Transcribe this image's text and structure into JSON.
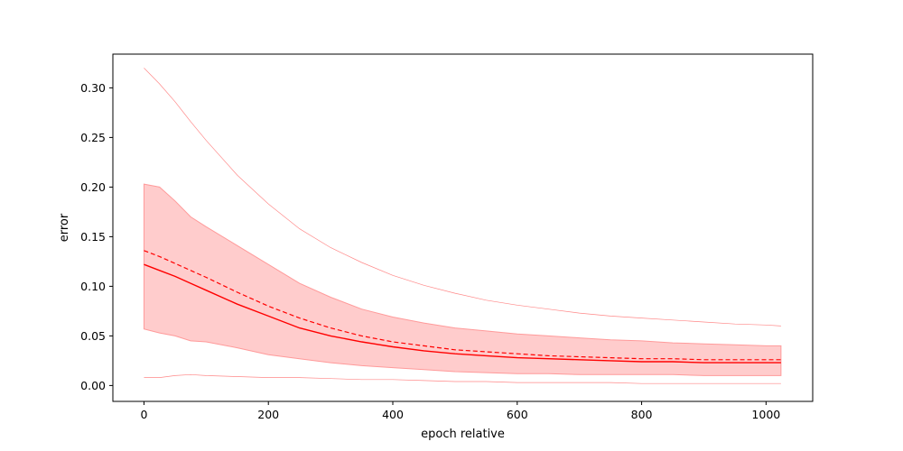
{
  "chart_data": {
    "type": "line",
    "title": "",
    "xlabel": "epoch relative",
    "ylabel": "error",
    "xlim": [
      -50,
      1075
    ],
    "ylim": [
      -0.016,
      0.334
    ],
    "xticks": [
      0,
      200,
      400,
      600,
      800,
      1000
    ],
    "xtick_labels": [
      "0",
      "200",
      "400",
      "600",
      "800",
      "1000"
    ],
    "yticks": [
      0.0,
      0.05,
      0.1,
      0.15,
      0.2,
      0.25,
      0.3
    ],
    "ytick_labels": [
      "0.00",
      "0.05",
      "0.10",
      "0.15",
      "0.20",
      "0.25",
      "0.30"
    ],
    "grid": false,
    "legend": "none",
    "colors": {
      "line": "#ff0000",
      "band": "#ffcccc",
      "band_edge": "#ff9a9a",
      "thin": "#ff8888"
    },
    "x": [
      0,
      25,
      50,
      75,
      100,
      150,
      200,
      250,
      300,
      350,
      400,
      450,
      500,
      550,
      600,
      650,
      700,
      750,
      800,
      850,
      900,
      950,
      1000,
      1024
    ],
    "series": [
      {
        "style": "solid",
        "values": [
          0.122,
          0.116,
          0.11,
          0.103,
          0.096,
          0.082,
          0.07,
          0.058,
          0.05,
          0.044,
          0.039,
          0.035,
          0.032,
          0.03,
          0.028,
          0.027,
          0.026,
          0.025,
          0.024,
          0.024,
          0.023,
          0.023,
          0.023,
          0.023
        ]
      },
      {
        "style": "dashed",
        "values": [
          0.136,
          0.13,
          0.123,
          0.116,
          0.109,
          0.094,
          0.08,
          0.068,
          0.058,
          0.05,
          0.044,
          0.04,
          0.036,
          0.034,
          0.032,
          0.03,
          0.029,
          0.028,
          0.027,
          0.027,
          0.026,
          0.026,
          0.026,
          0.026
        ]
      },
      {
        "style": "thin-upper",
        "values": [
          0.32,
          0.304,
          0.286,
          0.266,
          0.247,
          0.212,
          0.183,
          0.158,
          0.139,
          0.124,
          0.111,
          0.101,
          0.093,
          0.086,
          0.081,
          0.077,
          0.073,
          0.07,
          0.068,
          0.066,
          0.064,
          0.062,
          0.061,
          0.06
        ]
      },
      {
        "style": "thin-lower",
        "values": [
          0.008,
          0.008,
          0.01,
          0.011,
          0.01,
          0.009,
          0.008,
          0.008,
          0.007,
          0.006,
          0.006,
          0.005,
          0.004,
          0.004,
          0.003,
          0.003,
          0.003,
          0.003,
          0.002,
          0.002,
          0.002,
          0.002,
          0.002,
          0.002
        ]
      }
    ],
    "band": {
      "upper": [
        0.203,
        0.2,
        0.186,
        0.17,
        0.16,
        0.141,
        0.122,
        0.103,
        0.089,
        0.077,
        0.069,
        0.063,
        0.058,
        0.055,
        0.052,
        0.05,
        0.048,
        0.046,
        0.045,
        0.043,
        0.042,
        0.041,
        0.04,
        0.04
      ],
      "lower": [
        0.057,
        0.053,
        0.05,
        0.045,
        0.044,
        0.038,
        0.031,
        0.027,
        0.023,
        0.02,
        0.018,
        0.016,
        0.014,
        0.013,
        0.012,
        0.012,
        0.011,
        0.011,
        0.011,
        0.011,
        0.01,
        0.01,
        0.01,
        0.01
      ]
    }
  }
}
